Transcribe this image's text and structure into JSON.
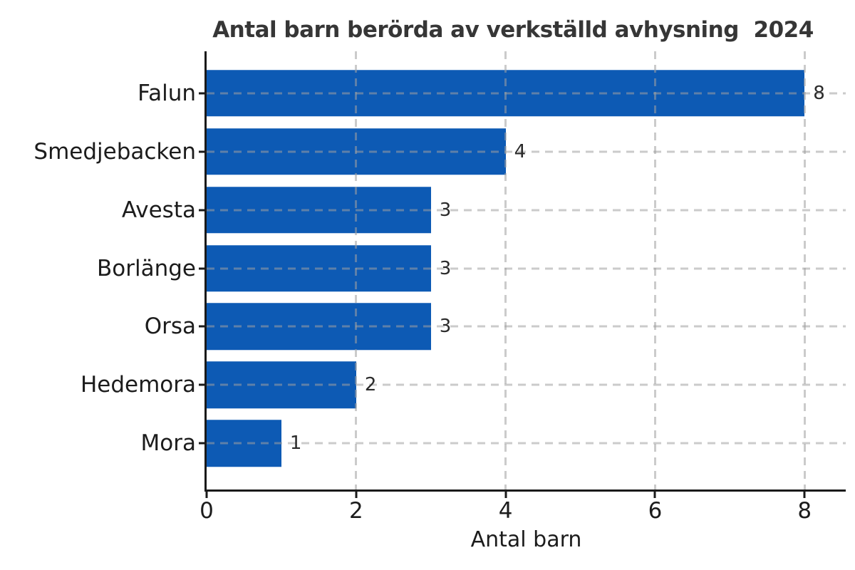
{
  "chart_data": {
    "type": "bar",
    "orientation": "horizontal",
    "title": "Antal barn berörda av verkställd avhysning  2024",
    "xlabel": "Antal barn",
    "ylabel": "",
    "categories": [
      "Falun",
      "Smedjebacken",
      "Avesta",
      "Borlänge",
      "Orsa",
      "Hedemora",
      "Mora"
    ],
    "values": [
      8,
      4,
      3,
      3,
      3,
      2,
      1
    ],
    "value_labels": [
      "8",
      "4",
      "3",
      "3",
      "3",
      "2",
      "1"
    ],
    "xticks": [
      0,
      2,
      4,
      6,
      8
    ],
    "xtick_labels": [
      "0",
      "2",
      "4",
      "6",
      "8"
    ],
    "xlim": [
      0,
      8.55
    ],
    "grid": "dashed, vertical at xticks and horizontal at bar centers, drawn over bars",
    "legend": "none",
    "colors": {
      "bar": "#0d5ab4",
      "grid": "#a0a0a0",
      "axis": "#1a1a1a",
      "title_text": "#363636",
      "label_text": "#1c1c1c",
      "background": "#ffffff"
    }
  }
}
